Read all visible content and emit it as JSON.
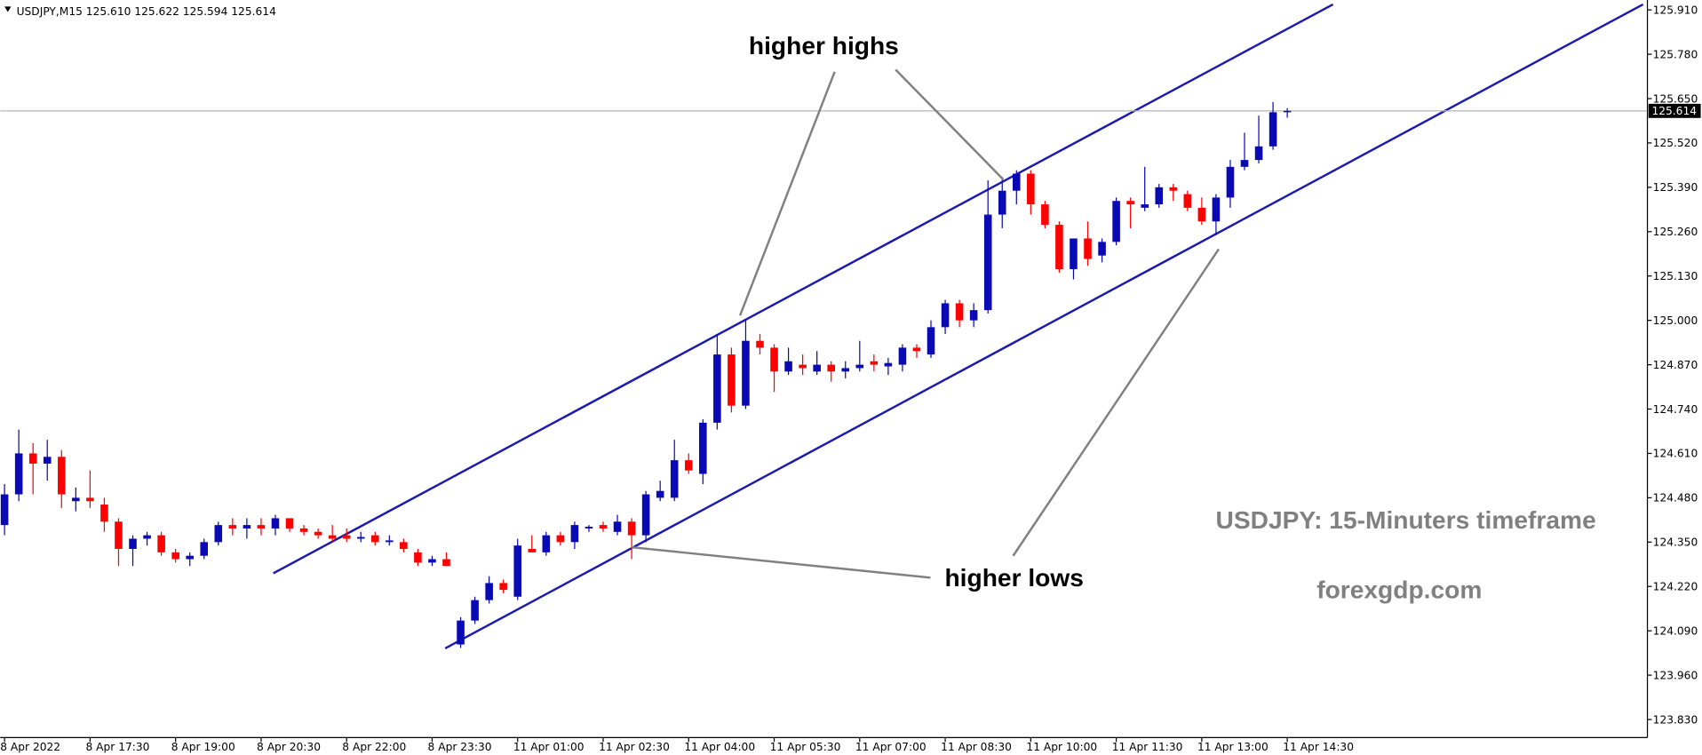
{
  "chart_data": {
    "type": "candlestick",
    "header": "USDJPY,M15  125.610 125.622 125.594 125.614",
    "x": [
      "8 Apr 2022",
      null,
      null,
      null,
      null,
      null,
      "8 Apr 17:30",
      null,
      null,
      null,
      null,
      null,
      "8 Apr 19:00",
      null,
      null,
      null,
      null,
      null,
      "8 Apr 20:30",
      null,
      null,
      null,
      null,
      null,
      "8 Apr 22:00",
      null,
      null,
      null,
      null,
      null,
      "8 Apr 23:30",
      null,
      null,
      null,
      null,
      null,
      "11 Apr 01:00",
      null,
      null,
      null,
      null,
      null,
      "11 Apr 02:30",
      null,
      null,
      null,
      null,
      null,
      "11 Apr 04:00",
      null,
      null,
      null,
      null,
      null,
      "11 Apr 05:30",
      null,
      null,
      null,
      null,
      null,
      "11 Apr 07:00",
      null,
      null,
      null,
      null,
      null,
      "11 Apr 08:30",
      null,
      null,
      null,
      null,
      null,
      "11 Apr 10:00",
      null,
      null,
      null,
      null,
      null,
      "11 Apr 11:30",
      null,
      null,
      null,
      null,
      null,
      "11 Apr 13:00",
      null,
      null,
      null,
      null,
      null,
      "11 Apr 14:30"
    ],
    "open": [
      124.4,
      124.49,
      124.61,
      124.58,
      124.6,
      124.47,
      124.48,
      124.46,
      124.41,
      124.33,
      124.36,
      124.37,
      124.32,
      124.3,
      124.31,
      124.35,
      124.4,
      124.39,
      124.4,
      124.39,
      124.42,
      124.39,
      124.38,
      124.37,
      124.37,
      124.36,
      124.37,
      124.35,
      124.35,
      124.32,
      124.29,
      124.3,
      124.05,
      124.12,
      124.18,
      124.23,
      124.19,
      124.33,
      124.32,
      124.37,
      124.35,
      124.39,
      124.4,
      124.38,
      124.41,
      124.37,
      124.48,
      124.48,
      124.59,
      124.55,
      124.7,
      124.9,
      124.75,
      124.94,
      124.92,
      124.85,
      124.87,
      124.85,
      124.87,
      124.85,
      124.86,
      124.88,
      124.865,
      124.87,
      124.92,
      124.9,
      124.98,
      125.05,
      125.0,
      125.03,
      125.31,
      125.38,
      125.43,
      125.34,
      125.28,
      125.15,
      125.24,
      125.19,
      125.23,
      125.35,
      125.33,
      125.34,
      125.39,
      125.37,
      125.33,
      125.29,
      125.36,
      125.45,
      125.47,
      125.51,
      125.61
    ],
    "high": [
      124.52,
      124.68,
      124.64,
      124.65,
      124.62,
      124.51,
      124.56,
      124.48,
      124.42,
      124.37,
      124.38,
      124.38,
      124.33,
      124.32,
      124.36,
      124.41,
      124.42,
      124.42,
      124.42,
      124.43,
      124.42,
      124.4,
      124.39,
      124.4,
      124.39,
      124.38,
      124.38,
      124.37,
      124.36,
      124.33,
      124.31,
      124.32,
      124.13,
      124.19,
      124.25,
      124.24,
      124.36,
      124.37,
      124.38,
      124.38,
      124.41,
      124.4,
      124.41,
      124.43,
      124.42,
      124.5,
      124.53,
      124.65,
      124.61,
      124.71,
      124.96,
      124.92,
      125.0,
      124.96,
      124.93,
      124.92,
      124.9,
      124.91,
      124.88,
      124.88,
      124.94,
      124.9,
      124.89,
      124.93,
      124.93,
      125.0,
      125.06,
      125.06,
      125.05,
      125.41,
      125.42,
      125.44,
      125.44,
      125.35,
      125.29,
      125.24,
      125.29,
      125.24,
      125.36,
      125.36,
      125.45,
      125.4,
      125.4,
      125.38,
      125.36,
      125.37,
      125.47,
      125.55,
      125.6,
      125.64,
      125.622
    ],
    "low": [
      124.37,
      124.47,
      124.49,
      124.53,
      124.45,
      124.44,
      124.45,
      124.38,
      124.28,
      124.28,
      124.34,
      124.31,
      124.29,
      124.28,
      124.3,
      124.34,
      124.37,
      124.36,
      124.37,
      124.37,
      124.38,
      124.37,
      124.36,
      124.35,
      124.35,
      124.35,
      124.34,
      124.34,
      124.32,
      124.28,
      124.28,
      124.28,
      124.04,
      124.11,
      124.17,
      124.2,
      124.18,
      124.32,
      124.31,
      124.34,
      124.33,
      124.38,
      124.38,
      124.37,
      124.3,
      124.35,
      124.47,
      124.47,
      124.55,
      124.52,
      124.68,
      124.73,
      124.74,
      124.9,
      124.79,
      124.84,
      124.84,
      124.84,
      124.82,
      124.83,
      124.85,
      124.85,
      124.84,
      124.85,
      124.89,
      124.89,
      124.96,
      124.98,
      124.98,
      125.02,
      125.27,
      125.34,
      125.31,
      125.27,
      125.14,
      125.12,
      125.16,
      125.17,
      125.22,
      125.27,
      125.32,
      125.33,
      125.35,
      125.32,
      125.28,
      125.25,
      125.33,
      125.44,
      125.46,
      125.5,
      125.594
    ],
    "close": [
      124.49,
      124.61,
      124.58,
      124.6,
      124.49,
      124.48,
      124.47,
      124.41,
      124.33,
      124.36,
      124.37,
      124.32,
      124.3,
      124.31,
      124.35,
      124.4,
      124.39,
      124.4,
      124.39,
      124.42,
      124.39,
      124.38,
      124.37,
      124.36,
      124.36,
      124.365,
      124.35,
      124.355,
      124.33,
      124.29,
      124.3,
      124.28,
      124.12,
      124.18,
      124.23,
      124.21,
      124.34,
      124.32,
      124.37,
      124.35,
      124.4,
      124.395,
      124.39,
      124.41,
      124.37,
      124.49,
      124.5,
      124.59,
      124.56,
      124.7,
      124.9,
      124.75,
      124.94,
      124.92,
      124.85,
      124.88,
      124.86,
      124.87,
      124.85,
      124.86,
      124.87,
      124.87,
      124.875,
      124.92,
      124.91,
      124.98,
      125.05,
      125.0,
      125.03,
      125.31,
      125.38,
      125.43,
      125.34,
      125.28,
      125.15,
      125.24,
      125.18,
      125.23,
      125.35,
      125.34,
      125.34,
      125.39,
      125.38,
      125.33,
      125.29,
      125.36,
      125.45,
      125.47,
      125.51,
      125.61,
      125.614
    ],
    "up_color": "#0a0ab4",
    "down_color": "#ff0000",
    "current_price": 125.614,
    "ylim": [
      123.777,
      125.939
    ],
    "yticks": [
      {
        "value": 125.91,
        "label": "125.910"
      },
      {
        "value": 125.78,
        "label": "125.780"
      },
      {
        "value": 125.65,
        "label": "125.650"
      },
      {
        "value": 125.52,
        "label": "125.520"
      },
      {
        "value": 125.39,
        "label": "125.390"
      },
      {
        "value": 125.26,
        "label": "125.260"
      },
      {
        "value": 125.13,
        "label": "125.130"
      },
      {
        "value": 125.0,
        "label": "125.000"
      },
      {
        "value": 124.87,
        "label": "124.870"
      },
      {
        "value": 124.74,
        "label": "124.740"
      },
      {
        "value": 124.61,
        "label": "124.610"
      },
      {
        "value": 124.48,
        "label": "124.480"
      },
      {
        "value": 124.35,
        "label": "124.350"
      },
      {
        "value": 124.22,
        "label": "124.220"
      },
      {
        "value": 124.09,
        "label": "124.090"
      },
      {
        "value": 123.96,
        "label": "123.960"
      },
      {
        "value": 123.83,
        "label": "123.830"
      }
    ],
    "annotations": [
      {
        "text": "higher highs"
      },
      {
        "text": "higher lows"
      },
      {
        "text": "USDJPY: 15-Minuters timeframe"
      },
      {
        "text": "forexgdp.com"
      }
    ]
  }
}
